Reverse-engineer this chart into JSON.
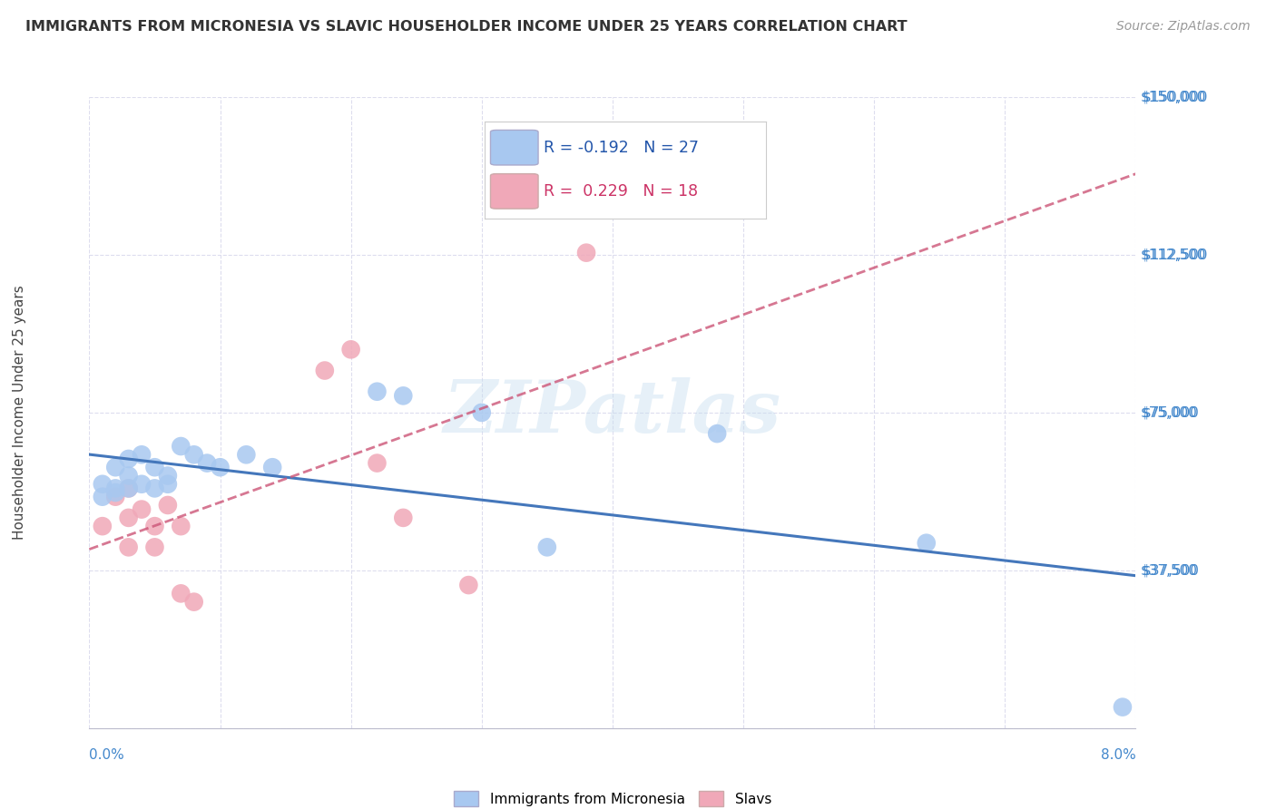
{
  "title": "IMMIGRANTS FROM MICRONESIA VS SLAVIC HOUSEHOLDER INCOME UNDER 25 YEARS CORRELATION CHART",
  "source": "Source: ZipAtlas.com",
  "ylabel": "Householder Income Under 25 years",
  "xlim": [
    0.0,
    0.08
  ],
  "ylim": [
    0,
    150000
  ],
  "yticks": [
    0,
    37500,
    75000,
    112500,
    150000
  ],
  "ytick_labels": [
    "",
    "$37,500",
    "$75,000",
    "$112,500",
    "$150,000"
  ],
  "micronesia_color": "#a8c8f0",
  "slavic_color": "#f0a8b8",
  "trend_micronesia_color": "#4477bb",
  "trend_slavic_color": "#cc5577",
  "micronesia_x": [
    0.001,
    0.001,
    0.002,
    0.002,
    0.002,
    0.003,
    0.003,
    0.003,
    0.004,
    0.004,
    0.005,
    0.005,
    0.006,
    0.006,
    0.007,
    0.008,
    0.009,
    0.01,
    0.012,
    0.014,
    0.022,
    0.024,
    0.03,
    0.035,
    0.048,
    0.064,
    0.079
  ],
  "micronesia_y": [
    58000,
    55000,
    62000,
    57000,
    56000,
    64000,
    60000,
    57000,
    65000,
    58000,
    62000,
    57000,
    60000,
    58000,
    67000,
    65000,
    63000,
    62000,
    65000,
    62000,
    80000,
    79000,
    75000,
    43000,
    70000,
    44000,
    5000
  ],
  "slavic_x": [
    0.001,
    0.002,
    0.003,
    0.003,
    0.003,
    0.004,
    0.005,
    0.005,
    0.006,
    0.007,
    0.007,
    0.008,
    0.018,
    0.02,
    0.022,
    0.024,
    0.029,
    0.038
  ],
  "slavic_y": [
    48000,
    55000,
    57000,
    50000,
    43000,
    52000,
    48000,
    43000,
    53000,
    48000,
    32000,
    30000,
    85000,
    90000,
    63000,
    50000,
    34000,
    113000
  ],
  "background_color": "#ffffff",
  "grid_color": "#ddddee",
  "watermark_text": "ZIPatlas",
  "legend_r1_val": "-0.192",
  "legend_r2_val": "0.229",
  "legend_n1": "27",
  "legend_n2": "18"
}
